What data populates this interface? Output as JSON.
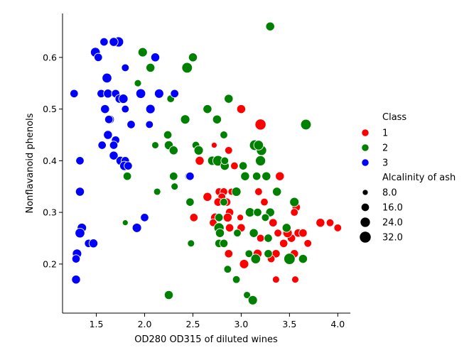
{
  "chart_data": {
    "type": "scatter",
    "xlabel": "OD280 OD315 of diluted wines",
    "ylabel": "Nonflavanoid phenols",
    "xlim": [
      1.15,
      4.13
    ],
    "ylim": [
      0.105,
      0.685
    ],
    "xticks": [
      "1.5",
      "2.0",
      "2.5",
      "3.0",
      "3.5",
      "4.0"
    ],
    "xtick_values": [
      1.5,
      2.0,
      2.5,
      3.0,
      3.5,
      4.0
    ],
    "yticks": [
      "0.2",
      "0.3",
      "0.4",
      "0.5",
      "0.6"
    ],
    "ytick_values": [
      0.2,
      0.3,
      0.4,
      0.5,
      0.6
    ],
    "grid": false,
    "legend_placement": "right",
    "hue": {
      "title": "Class",
      "entries": [
        {
          "label": "1",
          "color": "#ff0000"
        },
        {
          "label": "2",
          "color": "#008000"
        },
        {
          "label": "3",
          "color": "#0000ff"
        }
      ]
    },
    "size": {
      "title": "Alcalinity of ash",
      "entries": [
        {
          "label": "8.0",
          "value": 8
        },
        {
          "label": "16.0",
          "value": 16
        },
        {
          "label": "24.0",
          "value": 24
        },
        {
          "label": "32.0",
          "value": 32
        }
      ]
    },
    "series": [
      {
        "class": "1",
        "color": "#ff0000",
        "points": [
          [
            3.0,
            0.5,
            18
          ],
          [
            3.2,
            0.47,
            28
          ],
          [
            2.57,
            0.4,
            18
          ],
          [
            2.87,
            0.42,
            14
          ],
          [
            2.72,
            0.43,
            8
          ],
          [
            2.93,
            0.39,
            14
          ],
          [
            3.4,
            0.37,
            18
          ],
          [
            2.65,
            0.33,
            18
          ],
          [
            2.77,
            0.34,
            14
          ],
          [
            2.82,
            0.34,
            14
          ],
          [
            2.9,
            0.34,
            12
          ],
          [
            3.18,
            0.34,
            14
          ],
          [
            2.8,
            0.33,
            14
          ],
          [
            3.24,
            0.32,
            14
          ],
          [
            2.85,
            0.32,
            16
          ],
          [
            2.76,
            0.32,
            16
          ],
          [
            3.57,
            0.31,
            16
          ],
          [
            3.55,
            0.3,
            14
          ],
          [
            2.88,
            0.3,
            16
          ],
          [
            2.73,
            0.29,
            18
          ],
          [
            2.86,
            0.29,
            18
          ],
          [
            2.51,
            0.29,
            16
          ],
          [
            2.71,
            0.28,
            14
          ],
          [
            2.99,
            0.29,
            10
          ],
          [
            2.88,
            0.27,
            16
          ],
          [
            3.0,
            0.27,
            16
          ],
          [
            3.33,
            0.28,
            16
          ],
          [
            3.47,
            0.26,
            18
          ],
          [
            3.52,
            0.25,
            16
          ],
          [
            3.48,
            0.26,
            20
          ],
          [
            3.59,
            0.26,
            16
          ],
          [
            3.64,
            0.26,
            16
          ],
          [
            3.38,
            0.26,
            14
          ],
          [
            3.44,
            0.24,
            16
          ],
          [
            3.69,
            0.24,
            14
          ],
          [
            3.82,
            0.28,
            18
          ],
          [
            3.92,
            0.28,
            14
          ],
          [
            4.0,
            0.27,
            14
          ],
          [
            3.2,
            0.25,
            14
          ],
          [
            3.55,
            0.22,
            16
          ],
          [
            3.36,
            0.22,
            16
          ],
          [
            3.17,
            0.22,
            18
          ],
          [
            2.87,
            0.22,
            16
          ],
          [
            3.03,
            0.2,
            20
          ],
          [
            3.31,
            0.21,
            14
          ],
          [
            3.16,
            0.21,
            14
          ],
          [
            3.56,
            0.17,
            12
          ],
          [
            3.36,
            0.17,
            12
          ],
          [
            2.94,
            0.17,
            10
          ]
        ]
      },
      {
        "class": "2",
        "color": "#008000",
        "points": [
          [
            3.3,
            0.66,
            18
          ],
          [
            1.98,
            0.61,
            20
          ],
          [
            2.5,
            0.6,
            18
          ],
          [
            2.06,
            0.58,
            18
          ],
          [
            2.44,
            0.58,
            26
          ],
          [
            1.93,
            0.55,
            12
          ],
          [
            2.27,
            0.52,
            14
          ],
          [
            2.87,
            0.52,
            18
          ],
          [
            2.65,
            0.5,
            18
          ],
          [
            2.42,
            0.48,
            20
          ],
          [
            2.75,
            0.48,
            18
          ],
          [
            2.82,
            0.45,
            14
          ],
          [
            2.24,
            0.45,
            16
          ],
          [
            3.67,
            0.47,
            26
          ],
          [
            3.14,
            0.43,
            26
          ],
          [
            3.21,
            0.42,
            24
          ],
          [
            2.53,
            0.43,
            14
          ],
          [
            2.25,
            0.43,
            18
          ],
          [
            2.3,
            0.42,
            18
          ],
          [
            2.56,
            0.42,
            20
          ],
          [
            2.11,
            0.43,
            12
          ],
          [
            2.7,
            0.4,
            20
          ],
          [
            2.76,
            0.4,
            26
          ],
          [
            2.83,
            0.39,
            18
          ],
          [
            2.83,
            0.4,
            14
          ],
          [
            3.02,
            0.39,
            16
          ],
          [
            3.2,
            0.4,
            24
          ],
          [
            3.18,
            0.43,
            22
          ],
          [
            1.82,
            0.37,
            16
          ],
          [
            2.3,
            0.37,
            16
          ],
          [
            2.46,
            0.37,
            16
          ],
          [
            3.04,
            0.37,
            18
          ],
          [
            3.16,
            0.37,
            16
          ],
          [
            3.26,
            0.37,
            18
          ],
          [
            2.31,
            0.35,
            12
          ],
          [
            2.13,
            0.34,
            12
          ],
          [
            2.95,
            0.34,
            20
          ],
          [
            3.37,
            0.34,
            18
          ],
          [
            3.55,
            0.32,
            20
          ],
          [
            2.47,
            0.32,
            16
          ],
          [
            2.82,
            0.32,
            14
          ],
          [
            3.09,
            0.3,
            20
          ],
          [
            3.3,
            0.3,
            18
          ],
          [
            3.17,
            0.3,
            16
          ],
          [
            2.77,
            0.29,
            16
          ],
          [
            3.25,
            0.29,
            14
          ],
          [
            2.77,
            0.27,
            24
          ],
          [
            2.78,
            0.26,
            18
          ],
          [
            2.96,
            0.26,
            14
          ],
          [
            3.13,
            0.26,
            18
          ],
          [
            3.28,
            0.25,
            16
          ],
          [
            3.47,
            0.27,
            18
          ],
          [
            2.48,
            0.24,
            12
          ],
          [
            2.77,
            0.24,
            16
          ],
          [
            2.82,
            0.24,
            16
          ],
          [
            3.5,
            0.21,
            30
          ],
          [
            3.15,
            0.21,
            22
          ],
          [
            3.08,
            0.22,
            14
          ],
          [
            3.28,
            0.22,
            16
          ],
          [
            3.64,
            0.21,
            18
          ],
          [
            2.86,
            0.19,
            14
          ],
          [
            2.95,
            0.17,
            14
          ],
          [
            3.06,
            0.14,
            12
          ],
          [
            3.12,
            0.13,
            20
          ],
          [
            2.25,
            0.14,
            18
          ],
          [
            1.8,
            0.28,
            8
          ]
        ]
      },
      {
        "class": "3",
        "color": "#0000ff",
        "points": [
          [
            1.73,
            0.63,
            24
          ],
          [
            1.68,
            0.63,
            18
          ],
          [
            1.58,
            0.63,
            16
          ],
          [
            1.49,
            0.61,
            22
          ],
          [
            1.52,
            0.6,
            16
          ],
          [
            1.8,
            0.58,
            14
          ],
          [
            2.11,
            0.6,
            18
          ],
          [
            1.61,
            0.56,
            22
          ],
          [
            1.55,
            0.53,
            16
          ],
          [
            1.62,
            0.53,
            18
          ],
          [
            1.7,
            0.53,
            16
          ],
          [
            1.96,
            0.53,
            22
          ],
          [
            2.15,
            0.53,
            20
          ],
          [
            2.31,
            0.53,
            16
          ],
          [
            1.27,
            0.53,
            16
          ],
          [
            1.74,
            0.52,
            18
          ],
          [
            1.78,
            0.52,
            20
          ],
          [
            1.59,
            0.5,
            18
          ],
          [
            1.8,
            0.5,
            14
          ],
          [
            2.06,
            0.5,
            20
          ],
          [
            1.64,
            0.48,
            18
          ],
          [
            1.63,
            0.48,
            16
          ],
          [
            1.86,
            0.47,
            16
          ],
          [
            2.05,
            0.47,
            14
          ],
          [
            1.62,
            0.45,
            18
          ],
          [
            1.7,
            0.44,
            16
          ],
          [
            1.56,
            0.43,
            16
          ],
          [
            1.68,
            0.43,
            16
          ],
          [
            1.68,
            0.41,
            18
          ],
          [
            1.75,
            0.4,
            18
          ],
          [
            1.33,
            0.4,
            16
          ],
          [
            1.8,
            0.4,
            16
          ],
          [
            1.79,
            0.39,
            20
          ],
          [
            1.83,
            0.39,
            16
          ],
          [
            1.33,
            0.34,
            18
          ],
          [
            2.0,
            0.29,
            16
          ],
          [
            1.35,
            0.27,
            20
          ],
          [
            1.33,
            0.26,
            22
          ],
          [
            1.92,
            0.27,
            20
          ],
          [
            1.42,
            0.24,
            16
          ],
          [
            1.47,
            0.24,
            18
          ],
          [
            1.3,
            0.22,
            20
          ],
          [
            1.29,
            0.21,
            16
          ],
          [
            1.29,
            0.17,
            18
          ],
          [
            2.47,
            0.37,
            16
          ]
        ]
      }
    ]
  }
}
